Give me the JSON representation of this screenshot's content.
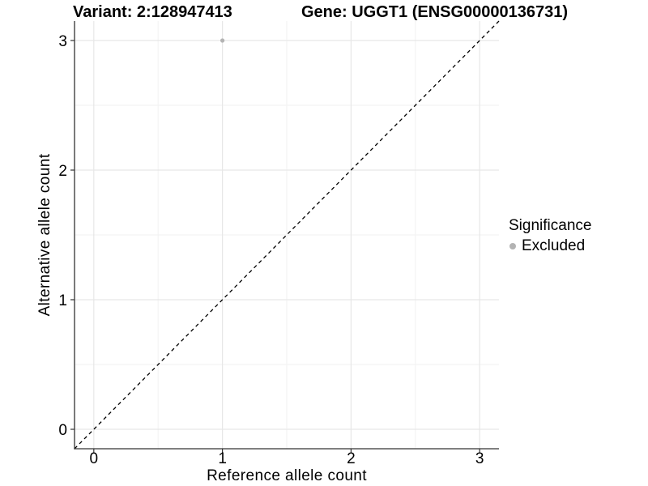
{
  "figure": {
    "title_variant": "Variant: 2:128947413",
    "title_gene": "Gene: UGGT1 (ENSG00000136731)"
  },
  "axes": {
    "x": {
      "label": "Reference allele count"
    },
    "y": {
      "label": "Alternative allele count"
    }
  },
  "legend": {
    "title": "Significance",
    "items": [
      {
        "label": "Excluded",
        "color": "#b3b3b3"
      }
    ]
  },
  "colors": {
    "background": "#ffffff",
    "grid_major": "#e7e7e7",
    "grid_minor": "#f2f2f2",
    "axis_line": "#333333",
    "tick_mark": "#333333",
    "text": "#000000",
    "excluded_point": "#b3b3b3",
    "reference_line": "#000000"
  },
  "chart_data": {
    "type": "scatter",
    "title": "Variant: 2:128947413 — Gene: UGGT1 (ENSG00000136731)",
    "xlabel": "Reference allele count",
    "ylabel": "Alternative allele count",
    "xlim": [
      -0.15,
      3.15
    ],
    "ylim": [
      -0.15,
      3.15
    ],
    "x_ticks": [
      0,
      1,
      2,
      3
    ],
    "y_ticks": [
      0,
      1,
      2,
      3
    ],
    "x_minor_ticks": [
      0.5,
      1.5,
      2.5
    ],
    "y_minor_ticks": [
      0.5,
      1.5,
      2.5
    ],
    "grid": "major+minor",
    "legend_position": "right",
    "series": [
      {
        "name": "Excluded",
        "color": "#b3b3b3",
        "points": [
          {
            "x": 1,
            "y": 3
          }
        ]
      }
    ],
    "reference_line": {
      "slope": 1,
      "intercept": 0,
      "style": "dashed",
      "color": "#000000"
    }
  }
}
